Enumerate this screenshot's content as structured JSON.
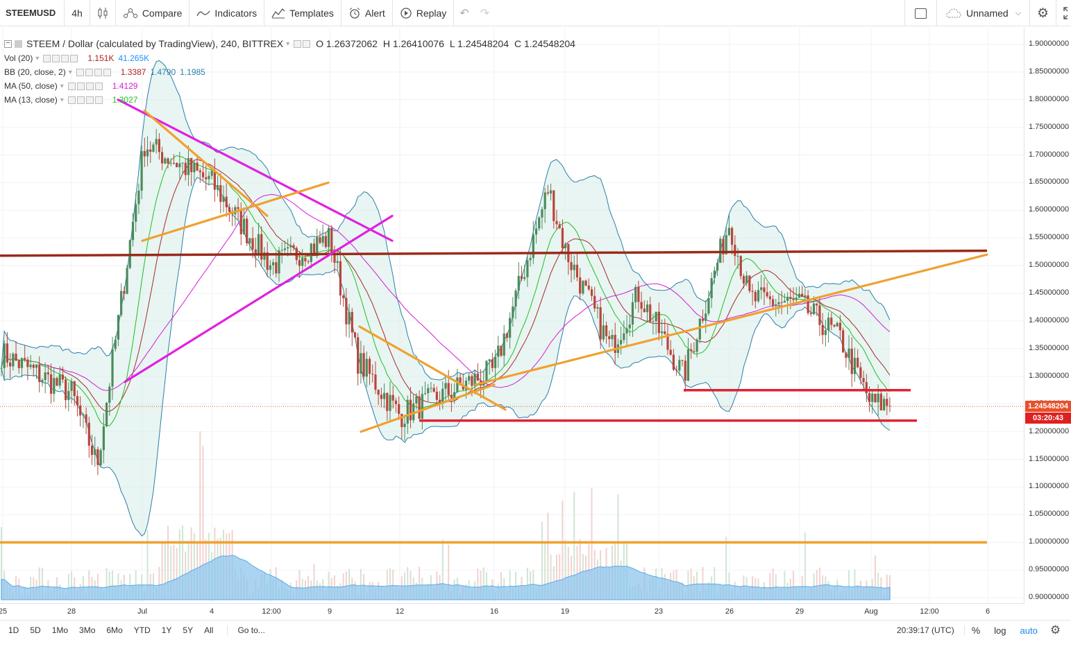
{
  "toolbar": {
    "symbol": "STEEMUSD",
    "interval": "4h",
    "compare": "Compare",
    "indicators": "Indicators",
    "templates": "Templates",
    "alert": "Alert",
    "replay": "Replay",
    "layout_name": "Unnamed"
  },
  "legend": {
    "title": "STEEM / Dollar (calculated by TradingView), 240, BITTREX",
    "open": "O 1.26372062",
    "high": "H 1.26410076",
    "low": "L 1.24548204",
    "close": "C 1.24548204",
    "indicators": [
      {
        "name": "Vol (20)",
        "values": [
          "1.151K",
          "41.265K"
        ],
        "colors": [
          "#b22222",
          "#1e90ff"
        ]
      },
      {
        "name": "BB (20, close, 2)",
        "values": [
          "1.3387",
          "1.4790",
          "1.1985"
        ],
        "colors": [
          "#b22222",
          "#2a7fa8",
          "#2a7fa8"
        ]
      },
      {
        "name": "MA (50, close)",
        "values": [
          "1.4129"
        ],
        "colors": [
          "#d61ad6"
        ]
      },
      {
        "name": "MA (13, close)",
        "values": [
          "1.3027"
        ],
        "colors": [
          "#1fbf1f"
        ]
      }
    ]
  },
  "price_axis": {
    "ticks": [
      "1.90000000",
      "1.85000000",
      "1.80000000",
      "1.75000000",
      "1.70000000",
      "1.65000000",
      "1.60000000",
      "1.55000000",
      "1.50000000",
      "1.45000000",
      "1.40000000",
      "1.35000000",
      "1.30000000",
      "1.25000000",
      "1.20000000",
      "1.15000000",
      "1.10000000",
      "1.05000000",
      "1.00000000",
      "0.95000000",
      "0.90000000"
    ],
    "last_price": "1.24548204",
    "countdown": "03:20:43"
  },
  "time_axis": {
    "ticks": [
      "25",
      "28",
      "Jul",
      "4",
      "12:00",
      "9",
      "12",
      "16",
      "19",
      "23",
      "26",
      "29",
      "Aug",
      "12:00",
      "6"
    ]
  },
  "bottombar": {
    "ranges": [
      "1D",
      "5D",
      "1Mo",
      "3Mo",
      "6Mo",
      "YTD",
      "1Y",
      "5Y",
      "All"
    ],
    "goto": "Go to...",
    "clock": "20:39:17 (UTC)",
    "percent": "%",
    "log": "log",
    "auto": "auto"
  },
  "colors": {
    "up": "#4c8a5b",
    "down": "#b8453a",
    "bb_fill": "#d6ece8",
    "bb_line": "#2a7fa8",
    "ma13": "#1fbf1f",
    "ma50": "#d61ad6",
    "ma20": "#a52a2a",
    "volume_area": "#8ec6ee",
    "orange": "#f0a030",
    "magenta": "#e020e0",
    "red": "#e02030",
    "darkred": "#9a2a1a",
    "last_price_badge": "#e8502a",
    "countdown_badge": "#e02020"
  },
  "chart_data": {
    "type": "candlestick",
    "series": [
      {
        "name": "STEEM / Dollar (calculated by TradingView), 240, BITTREX"
      }
    ],
    "ohlc_last": {
      "open": 1.26372062,
      "high": 1.26410076,
      "low": 1.24548204,
      "close": 1.24548204
    },
    "price_range": [
      0.89,
      1.93
    ],
    "approx_close_path": [
      {
        "x": "25",
        "close": 1.34
      },
      {
        "x": "28",
        "close": 1.27
      },
      {
        "x": "29",
        "close": 1.14
      },
      {
        "x": "Jul",
        "close": 1.72
      },
      {
        "x": "4",
        "close": 1.65
      },
      {
        "x": "12:00",
        "close": 1.5
      },
      {
        "x": "9",
        "close": 1.55
      },
      {
        "x": "10",
        "close": 1.33
      },
      {
        "x": "12",
        "close": 1.23
      },
      {
        "x": "16",
        "close": 1.31
      },
      {
        "x": "18",
        "close": 1.64
      },
      {
        "x": "19",
        "close": 1.53
      },
      {
        "x": "21",
        "close": 1.35
      },
      {
        "x": "22",
        "close": 1.45
      },
      {
        "x": "23",
        "close": 1.3
      },
      {
        "x": "26",
        "close": 1.58
      },
      {
        "x": "27",
        "close": 1.44
      },
      {
        "x": "29",
        "close": 1.43
      },
      {
        "x": "31",
        "close": 1.37
      },
      {
        "x": "Aug",
        "close": 1.25
      }
    ],
    "horizontal_lines": [
      1.525,
      1.0,
      1.275,
      1.22
    ],
    "grid": true
  }
}
